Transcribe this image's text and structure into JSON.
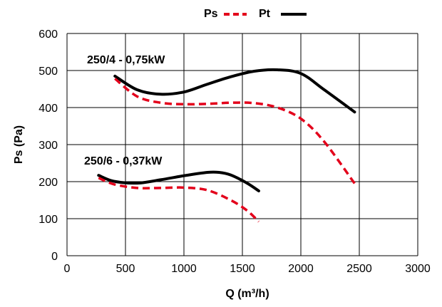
{
  "chart_data": {
    "type": "line",
    "xlabel": "Q (m³/h)",
    "ylabel": "Ps (Pa)",
    "xlim": [
      0,
      3000
    ],
    "ylim": [
      0,
      600
    ],
    "xticks": [
      0,
      500,
      1000,
      1500,
      2000,
      2500,
      3000
    ],
    "yticks": [
      0,
      100,
      200,
      300,
      400,
      500,
      600
    ],
    "grid": true,
    "legend_position": "top",
    "legend": [
      {
        "name": "Ps",
        "style": "dashed",
        "color": "#e3001b"
      },
      {
        "name": "Pt",
        "style": "solid",
        "color": "#000000"
      }
    ],
    "annotations": [
      {
        "text": "250/4 - 0,75kW",
        "curve": "250/4"
      },
      {
        "text": "250/6 - 0,37kW",
        "curve": "250/6"
      }
    ],
    "series": [
      {
        "name": "Pt",
        "curve": "250/4",
        "style": "solid",
        "color": "#000000",
        "x": [
          410,
          600,
          800,
          1000,
          1200,
          1400,
          1600,
          1800,
          2000,
          2200,
          2460
        ],
        "y": [
          485,
          448,
          436,
          442,
          463,
          483,
          498,
          502,
          492,
          448,
          388
        ]
      },
      {
        "name": "Ps",
        "curve": "250/4",
        "style": "dashed",
        "color": "#e3001b",
        "x": [
          410,
          600,
          800,
          1000,
          1200,
          1400,
          1600,
          1800,
          2000,
          2200,
          2460
        ],
        "y": [
          478,
          430,
          413,
          409,
          410,
          413,
          412,
          400,
          370,
          308,
          195
        ]
      },
      {
        "name": "Pt",
        "curve": "250/6",
        "style": "solid",
        "color": "#000000",
        "x": [
          270,
          400,
          600,
          800,
          1000,
          1200,
          1300,
          1400,
          1540,
          1640
        ],
        "y": [
          217,
          201,
          196,
          205,
          216,
          225,
          225,
          218,
          196,
          175
        ]
      },
      {
        "name": "Ps",
        "curve": "250/6",
        "style": "dashed",
        "color": "#e3001b",
        "x": [
          270,
          400,
          600,
          800,
          1000,
          1200,
          1400,
          1540,
          1640
        ],
        "y": [
          210,
          193,
          183,
          183,
          184,
          177,
          150,
          122,
          92
        ]
      }
    ]
  },
  "colors": {
    "ps": "#e3001b",
    "pt": "#000000",
    "grid": "#000000"
  }
}
